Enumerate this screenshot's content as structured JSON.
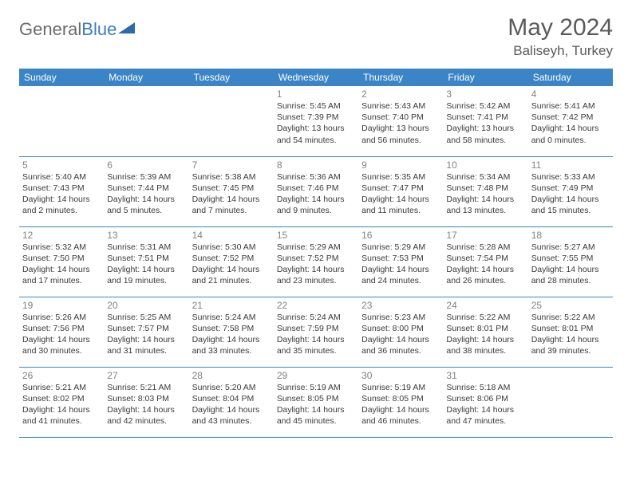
{
  "branding": {
    "logo_part1": "General",
    "logo_part2": "Blue",
    "logo_color_gray": "#6b6b6b",
    "logo_color_blue": "#3b7dbf",
    "logo_triangle_fill": "#2f6aa8"
  },
  "header": {
    "month_title": "May 2024",
    "location": "Baliseyh, Turkey"
  },
  "styling": {
    "header_bg": "#3b85c6",
    "header_text": "#ffffff",
    "border_color": "#3b85c6",
    "daynum_color": "#828282",
    "body_text_color": "#3a3a3a",
    "page_bg": "#ffffff",
    "title_color": "#5a5a5a"
  },
  "day_headers": [
    "Sunday",
    "Monday",
    "Tuesday",
    "Wednesday",
    "Thursday",
    "Friday",
    "Saturday"
  ],
  "weeks": [
    [
      null,
      null,
      null,
      {
        "n": "1",
        "sr": "5:45 AM",
        "ss": "7:39 PM",
        "dl": "13 hours and 54 minutes."
      },
      {
        "n": "2",
        "sr": "5:43 AM",
        "ss": "7:40 PM",
        "dl": "13 hours and 56 minutes."
      },
      {
        "n": "3",
        "sr": "5:42 AM",
        "ss": "7:41 PM",
        "dl": "13 hours and 58 minutes."
      },
      {
        "n": "4",
        "sr": "5:41 AM",
        "ss": "7:42 PM",
        "dl": "14 hours and 0 minutes."
      }
    ],
    [
      {
        "n": "5",
        "sr": "5:40 AM",
        "ss": "7:43 PM",
        "dl": "14 hours and 2 minutes."
      },
      {
        "n": "6",
        "sr": "5:39 AM",
        "ss": "7:44 PM",
        "dl": "14 hours and 5 minutes."
      },
      {
        "n": "7",
        "sr": "5:38 AM",
        "ss": "7:45 PM",
        "dl": "14 hours and 7 minutes."
      },
      {
        "n": "8",
        "sr": "5:36 AM",
        "ss": "7:46 PM",
        "dl": "14 hours and 9 minutes."
      },
      {
        "n": "9",
        "sr": "5:35 AM",
        "ss": "7:47 PM",
        "dl": "14 hours and 11 minutes."
      },
      {
        "n": "10",
        "sr": "5:34 AM",
        "ss": "7:48 PM",
        "dl": "14 hours and 13 minutes."
      },
      {
        "n": "11",
        "sr": "5:33 AM",
        "ss": "7:49 PM",
        "dl": "14 hours and 15 minutes."
      }
    ],
    [
      {
        "n": "12",
        "sr": "5:32 AM",
        "ss": "7:50 PM",
        "dl": "14 hours and 17 minutes."
      },
      {
        "n": "13",
        "sr": "5:31 AM",
        "ss": "7:51 PM",
        "dl": "14 hours and 19 minutes."
      },
      {
        "n": "14",
        "sr": "5:30 AM",
        "ss": "7:52 PM",
        "dl": "14 hours and 21 minutes."
      },
      {
        "n": "15",
        "sr": "5:29 AM",
        "ss": "7:52 PM",
        "dl": "14 hours and 23 minutes."
      },
      {
        "n": "16",
        "sr": "5:29 AM",
        "ss": "7:53 PM",
        "dl": "14 hours and 24 minutes."
      },
      {
        "n": "17",
        "sr": "5:28 AM",
        "ss": "7:54 PM",
        "dl": "14 hours and 26 minutes."
      },
      {
        "n": "18",
        "sr": "5:27 AM",
        "ss": "7:55 PM",
        "dl": "14 hours and 28 minutes."
      }
    ],
    [
      {
        "n": "19",
        "sr": "5:26 AM",
        "ss": "7:56 PM",
        "dl": "14 hours and 30 minutes."
      },
      {
        "n": "20",
        "sr": "5:25 AM",
        "ss": "7:57 PM",
        "dl": "14 hours and 31 minutes."
      },
      {
        "n": "21",
        "sr": "5:24 AM",
        "ss": "7:58 PM",
        "dl": "14 hours and 33 minutes."
      },
      {
        "n": "22",
        "sr": "5:24 AM",
        "ss": "7:59 PM",
        "dl": "14 hours and 35 minutes."
      },
      {
        "n": "23",
        "sr": "5:23 AM",
        "ss": "8:00 PM",
        "dl": "14 hours and 36 minutes."
      },
      {
        "n": "24",
        "sr": "5:22 AM",
        "ss": "8:01 PM",
        "dl": "14 hours and 38 minutes."
      },
      {
        "n": "25",
        "sr": "5:22 AM",
        "ss": "8:01 PM",
        "dl": "14 hours and 39 minutes."
      }
    ],
    [
      {
        "n": "26",
        "sr": "5:21 AM",
        "ss": "8:02 PM",
        "dl": "14 hours and 41 minutes."
      },
      {
        "n": "27",
        "sr": "5:21 AM",
        "ss": "8:03 PM",
        "dl": "14 hours and 42 minutes."
      },
      {
        "n": "28",
        "sr": "5:20 AM",
        "ss": "8:04 PM",
        "dl": "14 hours and 43 minutes."
      },
      {
        "n": "29",
        "sr": "5:19 AM",
        "ss": "8:05 PM",
        "dl": "14 hours and 45 minutes."
      },
      {
        "n": "30",
        "sr": "5:19 AM",
        "ss": "8:05 PM",
        "dl": "14 hours and 46 minutes."
      },
      {
        "n": "31",
        "sr": "5:18 AM",
        "ss": "8:06 PM",
        "dl": "14 hours and 47 minutes."
      },
      null
    ]
  ],
  "labels": {
    "sunrise": "Sunrise:",
    "sunset": "Sunset:",
    "daylight": "Daylight:"
  }
}
